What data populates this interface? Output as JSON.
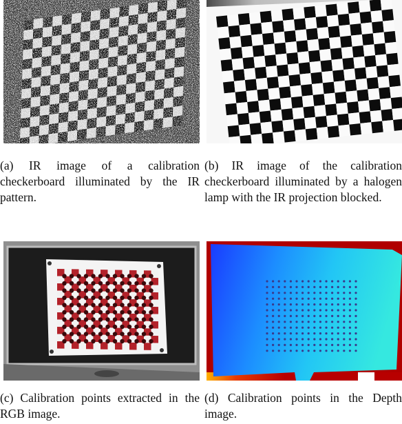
{
  "figures": [
    {
      "id": "a",
      "caption": "(a) IR image of a calibration checkerboard illuminated by the IR pattern."
    },
    {
      "id": "b",
      "caption": "(b) IR image of the calibration checkerboard illuminated by a halogen lamp with the IR projec­tion blocked."
    },
    {
      "id": "c",
      "caption": "(c) Calibration points extracted in the RGB image."
    },
    {
      "id": "d",
      "caption": "(d) Calibration points in the Depth image."
    }
  ]
}
